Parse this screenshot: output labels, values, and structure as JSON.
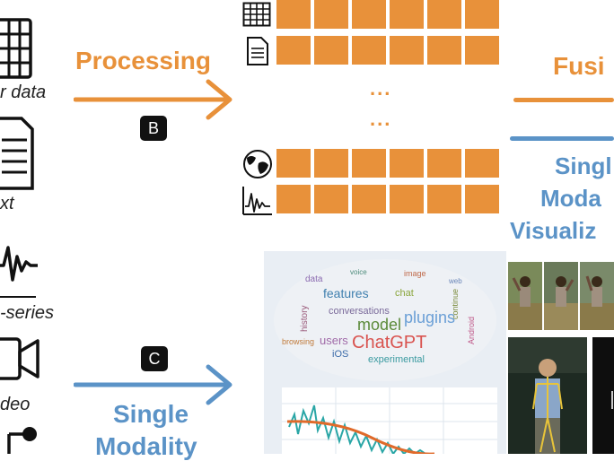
{
  "left_labels": {
    "tabular": "r data",
    "text": "xt",
    "timeseries": "-series",
    "video": "deo"
  },
  "processing": {
    "label": "Processing",
    "badge": "B"
  },
  "single_modality": {
    "line1": "Single",
    "line2": "Modality",
    "badge": "C"
  },
  "fusion": {
    "label": "Fusi"
  },
  "single_modality_vis": {
    "line1": "Singl",
    "line2": "Moda",
    "line3": "Visualiz"
  },
  "ellipsis": [
    "...",
    "..."
  ],
  "wordcloud": {
    "main_word": "ChatGPT",
    "words": [
      "model",
      "plugins",
      "features",
      "users",
      "history",
      "browsing",
      "iOS",
      "conversations",
      "experimental",
      "continue",
      "Android",
      "chat",
      "data",
      "image",
      "voice",
      "web"
    ]
  },
  "colors": {
    "orange": "#e8913a",
    "blue": "#5b93c7"
  }
}
